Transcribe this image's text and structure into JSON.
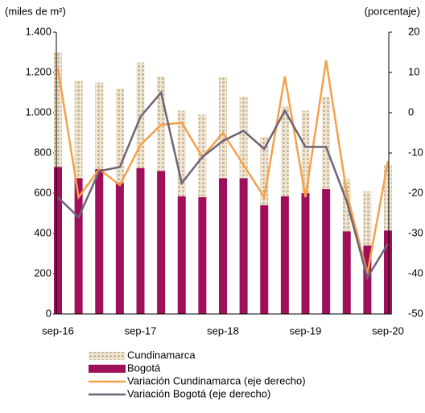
{
  "chart_data": {
    "type": "bar",
    "y_label": "(miles de m²)",
    "y2_label": "(porcentaje)",
    "categories": [
      "sep-16",
      null,
      null,
      null,
      "sep-17",
      null,
      null,
      null,
      "sep-18",
      null,
      null,
      null,
      "sep-19",
      null,
      null,
      null,
      "sep-20"
    ],
    "series": [
      {
        "name": "Bogotá",
        "type": "bar",
        "color": "#a0105a",
        "values": [
          730,
          675,
          720,
          650,
          725,
          710,
          585,
          580,
          675,
          675,
          540,
          585,
          600,
          620,
          410,
          340,
          415
        ]
      },
      {
        "name": "Cundinamarca",
        "type": "bar",
        "color": "#d9c7a6",
        "values": [
          570,
          485,
          430,
          470,
          525,
          470,
          425,
          410,
          500,
          405,
          340,
          445,
          410,
          460,
          260,
          270,
          325
        ]
      },
      {
        "name": "Variación Cundinamarca (eje derecho)",
        "type": "line",
        "axis": "y2",
        "color": "#f5a04a",
        "values": [
          11,
          -21,
          -14,
          -18,
          -8,
          -3,
          -2.5,
          -11,
          -5,
          -13,
          -21,
          9,
          -21,
          13,
          -20,
          -40,
          -12
        ]
      },
      {
        "name": "Variación Bogotá (eje derecho)",
        "type": "line",
        "axis": "y2",
        "color": "#6e6477",
        "values": [
          -21,
          -26,
          -14.5,
          -13.5,
          -1,
          5,
          -17.5,
          -11,
          -7,
          -4.5,
          -9,
          0.5,
          -8.5,
          -8.5,
          -22,
          -41,
          -32.5
        ]
      }
    ],
    "legend_order": [
      1,
      0,
      2,
      3
    ],
    "ylim": [
      0,
      1400
    ],
    "yticks": [
      0,
      200,
      400,
      600,
      800,
      {
        "value": 1000,
        "label": "1.000"
      },
      {
        "value": 1200,
        "label": "1.200"
      },
      {
        "value": 1400,
        "label": "1.400"
      }
    ],
    "y2lim": [
      -50,
      20
    ],
    "y2ticks": [
      -50,
      -40,
      -30,
      -20,
      -10,
      0,
      10,
      20
    ],
    "grid": false
  }
}
